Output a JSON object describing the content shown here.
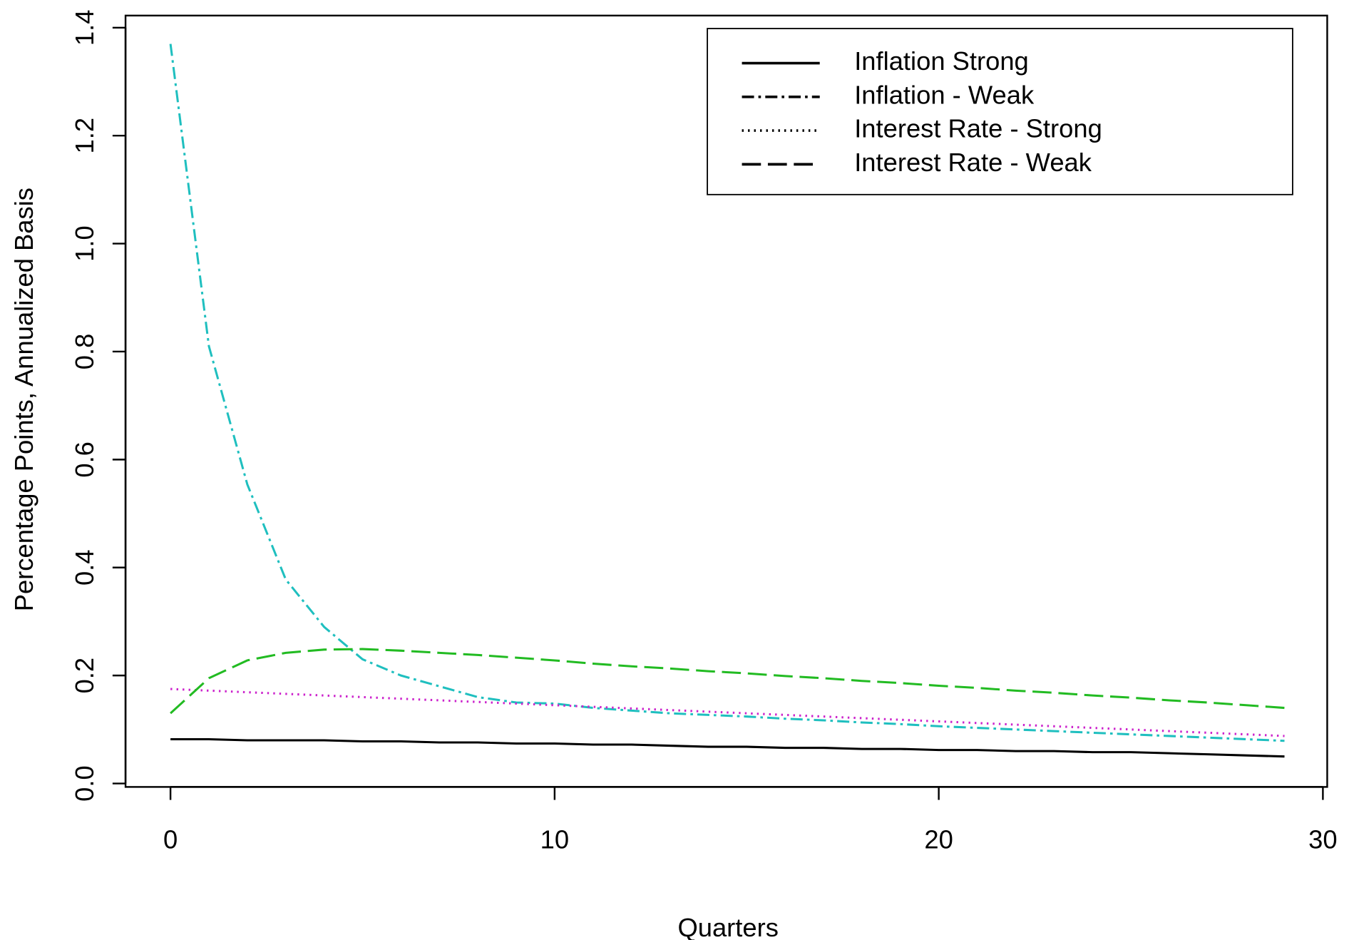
{
  "chart_data": {
    "type": "line",
    "x_label": "Quarters",
    "y_label": "Percentage Points, Annualized Basis",
    "x": [
      0,
      1,
      2,
      3,
      4,
      5,
      6,
      7,
      8,
      9,
      10,
      11,
      12,
      13,
      14,
      15,
      16,
      17,
      18,
      19,
      20,
      21,
      22,
      23,
      24,
      25,
      26,
      27,
      28,
      29
    ],
    "series": [
      {
        "name": "Inflation Strong",
        "color": "#000000",
        "dash": "solid",
        "values": [
          0.082,
          0.082,
          0.08,
          0.08,
          0.08,
          0.078,
          0.078,
          0.076,
          0.076,
          0.074,
          0.074,
          0.072,
          0.072,
          0.07,
          0.068,
          0.068,
          0.066,
          0.066,
          0.064,
          0.064,
          0.062,
          0.062,
          0.06,
          0.06,
          0.058,
          0.058,
          0.056,
          0.054,
          0.052,
          0.05
        ]
      },
      {
        "name": "Inflation - Weak",
        "color": "#1fbfbf",
        "dash": "dashdot",
        "values": [
          1.37,
          0.81,
          0.554,
          0.378,
          0.29,
          0.23,
          0.2,
          0.18,
          0.16,
          0.15,
          0.148,
          0.14,
          0.135,
          0.13,
          0.127,
          0.124,
          0.12,
          0.117,
          0.113,
          0.11,
          0.106,
          0.103,
          0.1,
          0.097,
          0.094,
          0.091,
          0.088,
          0.085,
          0.082,
          0.079
        ]
      },
      {
        "name": "Interest Rate - Strong",
        "color": "#cc22cc",
        "dash": "dotted",
        "values": [
          0.175,
          0.172,
          0.169,
          0.166,
          0.163,
          0.16,
          0.157,
          0.154,
          0.151,
          0.148,
          0.145,
          0.142,
          0.139,
          0.136,
          0.133,
          0.13,
          0.127,
          0.124,
          0.121,
          0.118,
          0.115,
          0.112,
          0.109,
          0.106,
          0.103,
          0.1,
          0.097,
          0.094,
          0.091,
          0.088
        ]
      },
      {
        "name": "Interest Rate - Weak",
        "color": "#22bb22",
        "dash": "dashed",
        "values": [
          0.13,
          0.195,
          0.228,
          0.242,
          0.248,
          0.249,
          0.246,
          0.242,
          0.238,
          0.233,
          0.228,
          0.222,
          0.217,
          0.213,
          0.208,
          0.204,
          0.199,
          0.195,
          0.19,
          0.186,
          0.181,
          0.177,
          0.172,
          0.168,
          0.163,
          0.159,
          0.154,
          0.15,
          0.145,
          0.14
        ]
      }
    ],
    "xlim": [
      0,
      30
    ],
    "xticks": [
      0,
      10,
      20,
      30
    ],
    "ylim": [
      0,
      1.4
    ],
    "yticks": [
      {
        "value": 0,
        "label": "0.0"
      },
      0.2,
      0.4,
      0.6,
      0.8,
      {
        "value": 1,
        "label": "1.0"
      },
      1.2,
      1.4
    ],
    "legend_position": "top-right",
    "legend_line_color": "#000000"
  }
}
